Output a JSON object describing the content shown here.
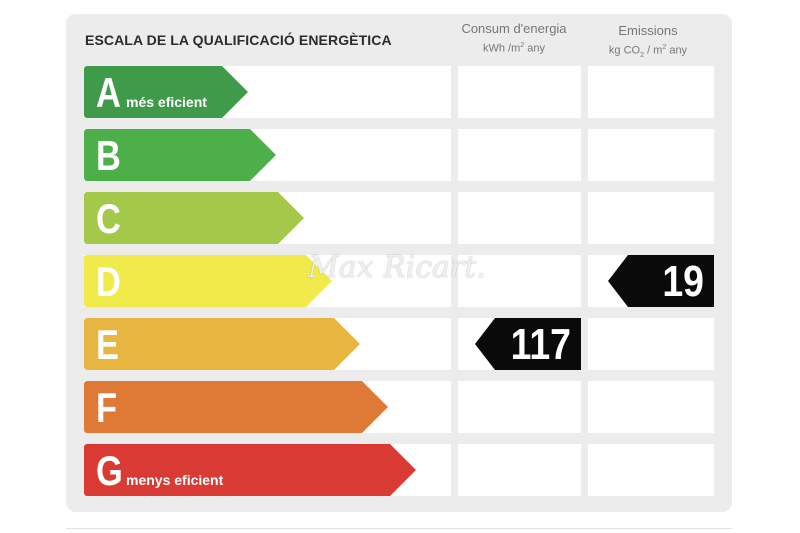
{
  "title": "ESCALA DE LA QUALIFICACIÓ ENERGÈTICA",
  "columns": {
    "energy": {
      "title": "Consum d'energia",
      "unit_prefix": "kWh /m",
      "unit_sup": "2",
      "unit_suffix": " any"
    },
    "emissions": {
      "title": "Emissions",
      "unit_prefix": "kg CO",
      "unit_sub": "2",
      "unit_mid": " / m",
      "unit_sup": "2",
      "unit_suffix": " any"
    }
  },
  "grades": [
    {
      "letter": "A",
      "label": "més eficient",
      "color": "#3f9a4a"
    },
    {
      "letter": "B",
      "label": "",
      "color": "#4daf4a"
    },
    {
      "letter": "C",
      "label": "",
      "color": "#a4c94a"
    },
    {
      "letter": "D",
      "label": "",
      "color": "#f0ea4a"
    },
    {
      "letter": "E",
      "label": "",
      "color": "#e8b640"
    },
    {
      "letter": "F",
      "label": "",
      "color": "#de7a36"
    },
    {
      "letter": "G",
      "label": "menys eficient",
      "color": "#d93a34"
    }
  ],
  "energy_rating": {
    "grade": "E",
    "value": "117"
  },
  "emissions_rating": {
    "grade": "D",
    "value": "19"
  },
  "watermark": "Max Ricart."
}
